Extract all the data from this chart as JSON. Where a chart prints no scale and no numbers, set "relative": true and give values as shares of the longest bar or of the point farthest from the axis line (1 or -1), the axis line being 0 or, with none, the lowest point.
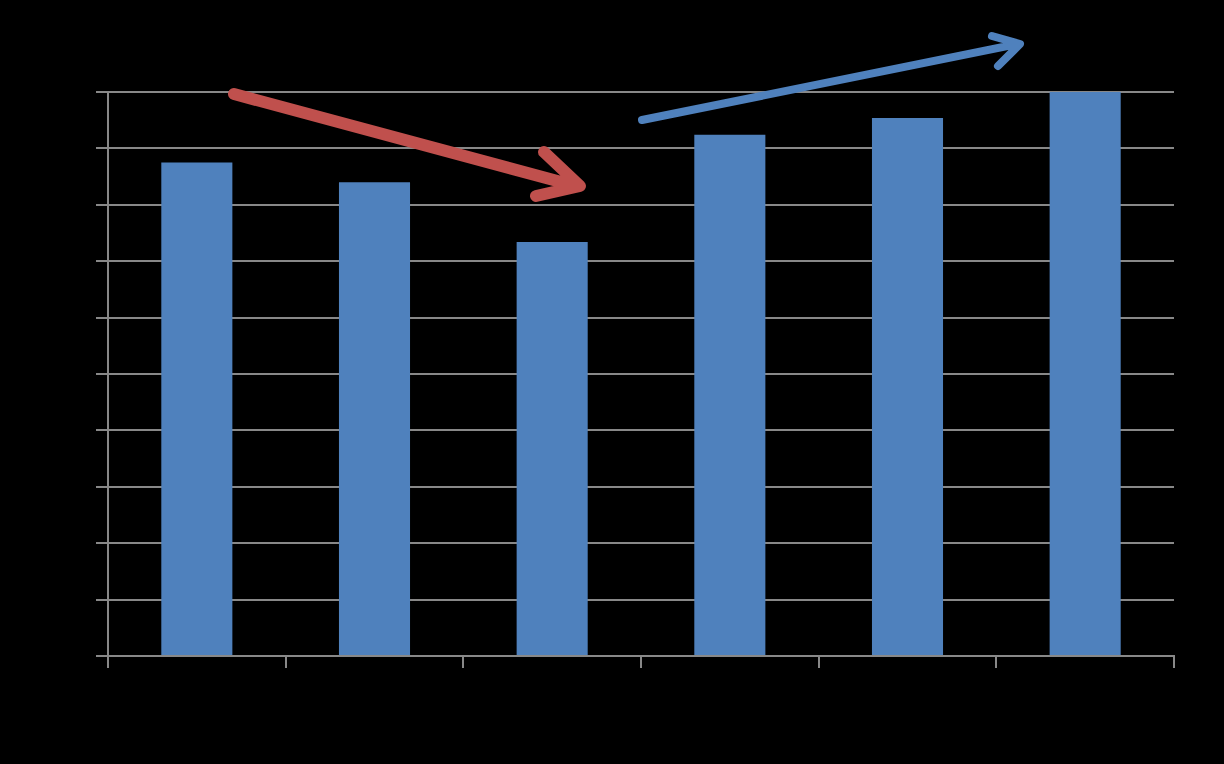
{
  "chart_data": {
    "type": "bar",
    "categories": [
      null,
      null,
      null,
      null,
      null,
      null
    ],
    "values": [
      0.875,
      0.84,
      0.734,
      0.924,
      0.954,
      1
    ],
    "color": "#4f81bd",
    "relative": true,
    "grid": "y"
  }
}
